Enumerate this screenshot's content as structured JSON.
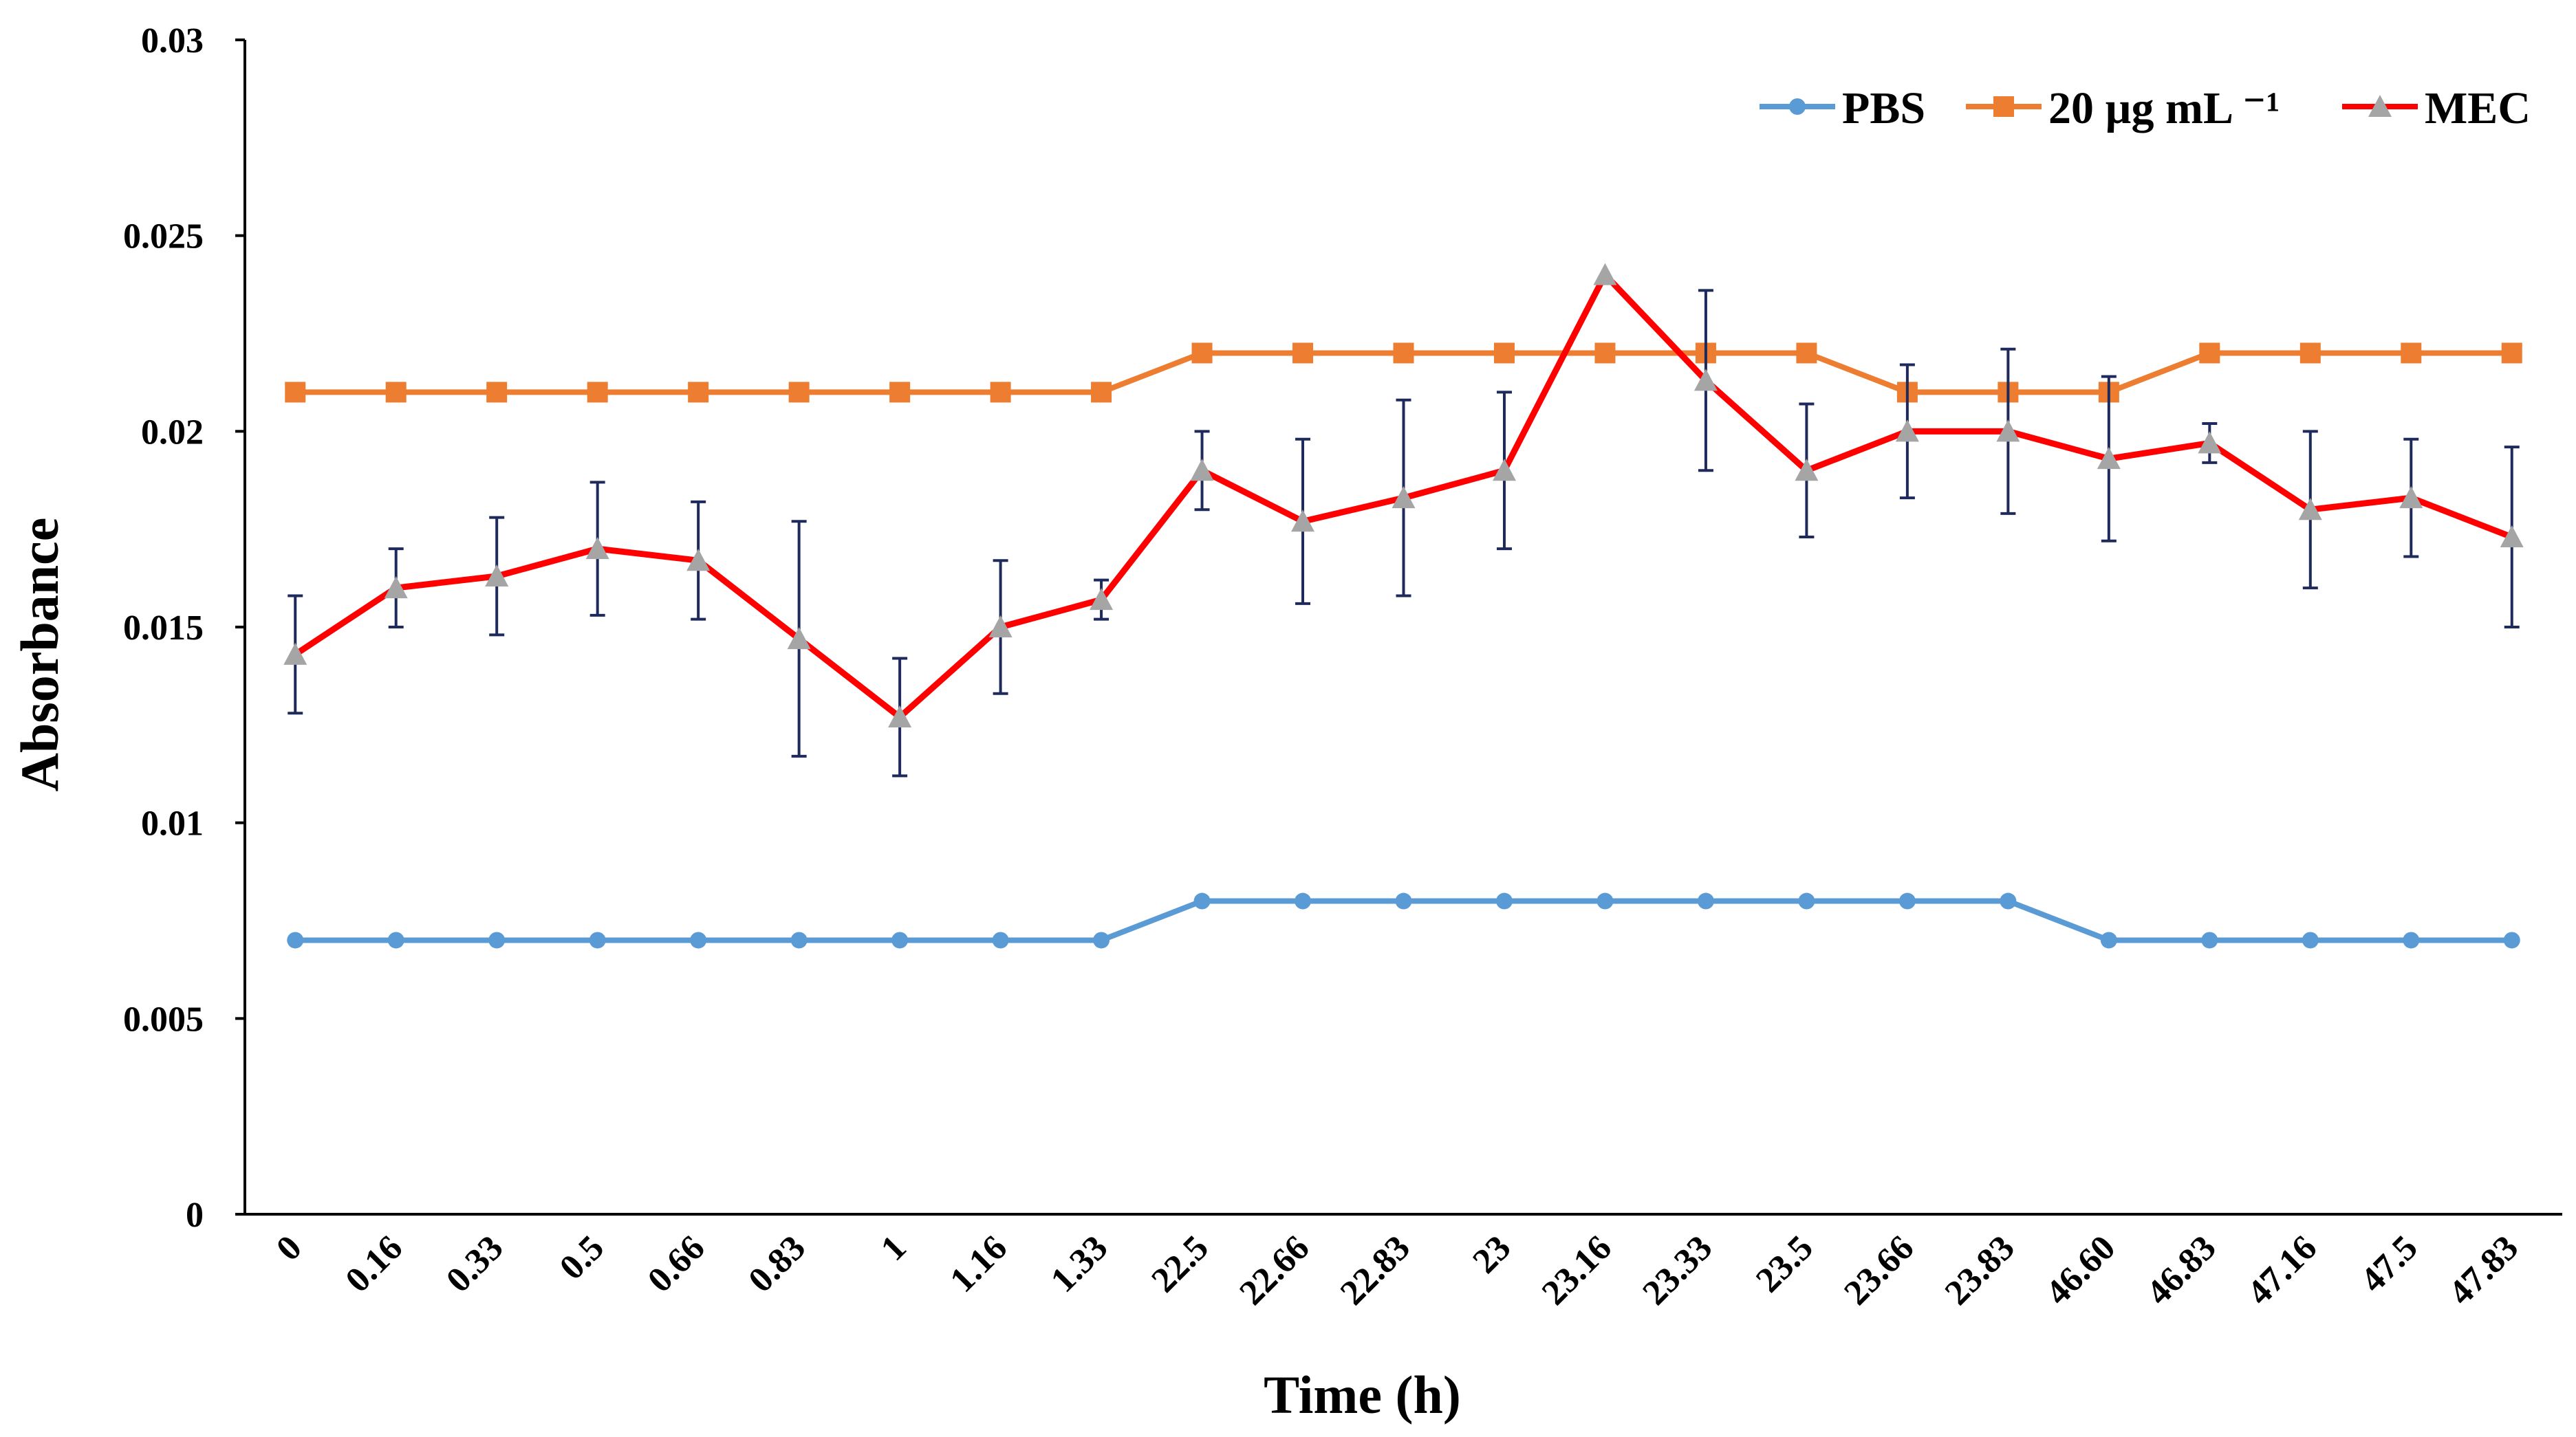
{
  "chart_data": {
    "type": "line",
    "title": "",
    "xlabel": "Time (h)",
    "ylabel": "Absorbance",
    "ylim": [
      0,
      0.03
    ],
    "yticks": [
      "0",
      "0.005",
      "0.01",
      "0.015",
      "0.02",
      "0.025",
      "0.03"
    ],
    "ytick_values": [
      0,
      0.005,
      0.01,
      0.015,
      0.02,
      0.025,
      0.03
    ],
    "categories": [
      "0",
      "0.16",
      "0.33",
      "0.5",
      "0.66",
      "0.83",
      "1",
      "1.16",
      "1.33",
      "22.5",
      "22.66",
      "22.83",
      "23",
      "23.16",
      "23.33",
      "23.5",
      "23.66",
      "23.83",
      "46.60",
      "46.83",
      "47.16",
      "47.5",
      "47.83"
    ],
    "legend_position": "top-right",
    "series": [
      {
        "name": "PBS",
        "color": "#5B9BD5",
        "marker": "circle",
        "values": [
          0.007,
          0.007,
          0.007,
          0.007,
          0.007,
          0.007,
          0.007,
          0.007,
          0.007,
          0.008,
          0.008,
          0.008,
          0.008,
          0.008,
          0.008,
          0.008,
          0.008,
          0.008,
          0.007,
          0.007,
          0.007,
          0.007,
          0.007
        ]
      },
      {
        "name": "20 µg mL ⁻¹",
        "color": "#ED7D31",
        "marker": "square",
        "values": [
          0.021,
          0.021,
          0.021,
          0.021,
          0.021,
          0.021,
          0.021,
          0.021,
          0.021,
          0.022,
          0.022,
          0.022,
          0.022,
          0.022,
          0.022,
          0.022,
          0.021,
          0.021,
          0.021,
          0.022,
          0.022,
          0.022,
          0.022
        ]
      },
      {
        "name": "MEC",
        "color": "#FF0000",
        "marker": "triangle",
        "marker_color": "#A5A5A5",
        "error_color": "#1F2A5C",
        "values": [
          0.0143,
          0.016,
          0.0163,
          0.017,
          0.0167,
          0.0147,
          0.0127,
          0.015,
          0.0157,
          0.019,
          0.0177,
          0.0183,
          0.019,
          0.024,
          0.0213,
          0.019,
          0.02,
          0.02,
          0.0193,
          0.0197,
          0.018,
          0.0183,
          0.0173
        ],
        "errors": [
          0.0015,
          0.001,
          0.0015,
          0.0017,
          0.0015,
          0.003,
          0.0015,
          0.0017,
          0.0005,
          0.001,
          0.0021,
          0.0025,
          0.002,
          0,
          0.0023,
          0.0017,
          0.0017,
          0.0021,
          0.0021,
          0.0005,
          0.002,
          0.0015,
          0.0023
        ]
      }
    ]
  }
}
